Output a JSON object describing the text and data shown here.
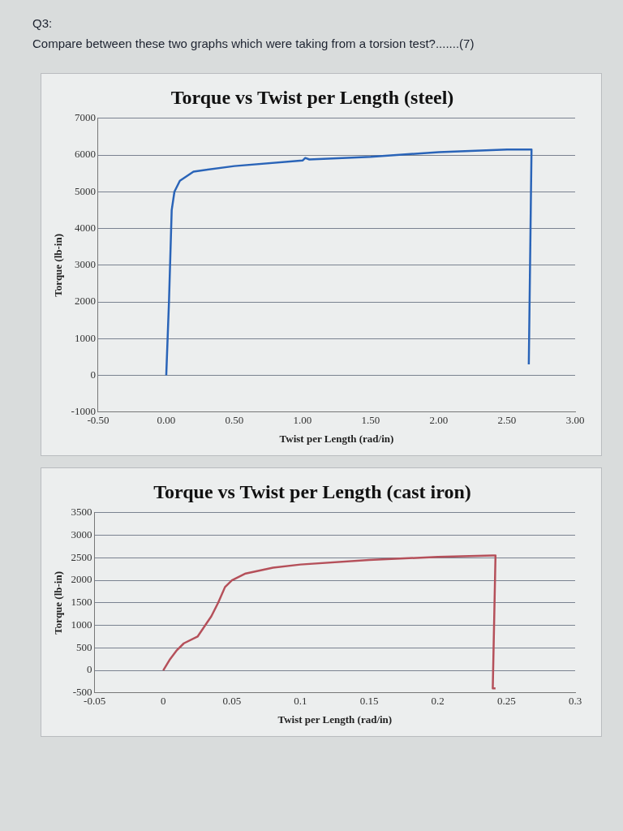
{
  "chart_data": [
    {
      "type": "line",
      "title": "Torque vs Twist per Length (steel)",
      "xlabel": "Twist per Length (rad/in)",
      "ylabel": "Torque (lb-in)",
      "annotations": [
        "Q3:",
        "Compare between these two graphs which were taking from a torsion test?.......(7)"
      ],
      "xlim": [
        -0.5,
        3
      ],
      "xticks": [
        {
          "value": -0.5,
          "label": "-0.50"
        },
        {
          "value": 0,
          "label": "0.00"
        },
        {
          "value": 0.5,
          "label": "0.50"
        },
        {
          "value": 1,
          "label": "1.00"
        },
        {
          "value": 1.5,
          "label": "1.50"
        },
        {
          "value": 2,
          "label": "2.00"
        },
        {
          "value": 2.5,
          "label": "2.50"
        },
        {
          "value": 3,
          "label": "3.00"
        }
      ],
      "ylim": [
        -1000,
        7000
      ],
      "yticks": [
        -1000,
        0,
        1000,
        2000,
        3000,
        4000,
        5000,
        6000,
        7000
      ],
      "grid": "y",
      "legend": false,
      "marker": "none",
      "line_style": "solid",
      "series": [
        {
          "color": "#2a64b8",
          "x": [
            0,
            0.02,
            0.04,
            0.06,
            0.1,
            0.2,
            0.5,
            1.0,
            1.02,
            1.05,
            1.5,
            2.0,
            2.5,
            2.68,
            2.66
          ],
          "values": [
            0,
            2000,
            4500,
            5000,
            5300,
            5550,
            5700,
            5850,
            5920,
            5880,
            5950,
            6080,
            6150,
            6150,
            300
          ]
        }
      ]
    },
    {
      "type": "line",
      "title": "Torque vs Twist per Length (cast iron)",
      "xlabel": "Twist per Length (rad/in)",
      "ylabel": "Torque (lb-in)",
      "xlim": [
        -0.05,
        0.3
      ],
      "xticks": [
        -0.05,
        0,
        0.05,
        0.1,
        0.15,
        0.2,
        0.25,
        0.3
      ],
      "ylim": [
        -500,
        3500
      ],
      "yticks": [
        -500,
        0,
        500,
        1000,
        1500,
        2000,
        2500,
        3000,
        3500
      ],
      "grid": "y",
      "legend": false,
      "marker": "none",
      "line_style": "solid",
      "series": [
        {
          "color": "#b5505a",
          "x": [
            0,
            0.005,
            0.01,
            0.015,
            0.025,
            0.035,
            0.04,
            0.045,
            0.05,
            0.06,
            0.08,
            0.1,
            0.15,
            0.2,
            0.24,
            0.242,
            0.24,
            0.242
          ],
          "values": [
            0,
            250,
            450,
            600,
            750,
            1200,
            1500,
            1850,
            2000,
            2150,
            2280,
            2350,
            2450,
            2520,
            2550,
            2550,
            -400,
            -400
          ]
        }
      ]
    }
  ]
}
